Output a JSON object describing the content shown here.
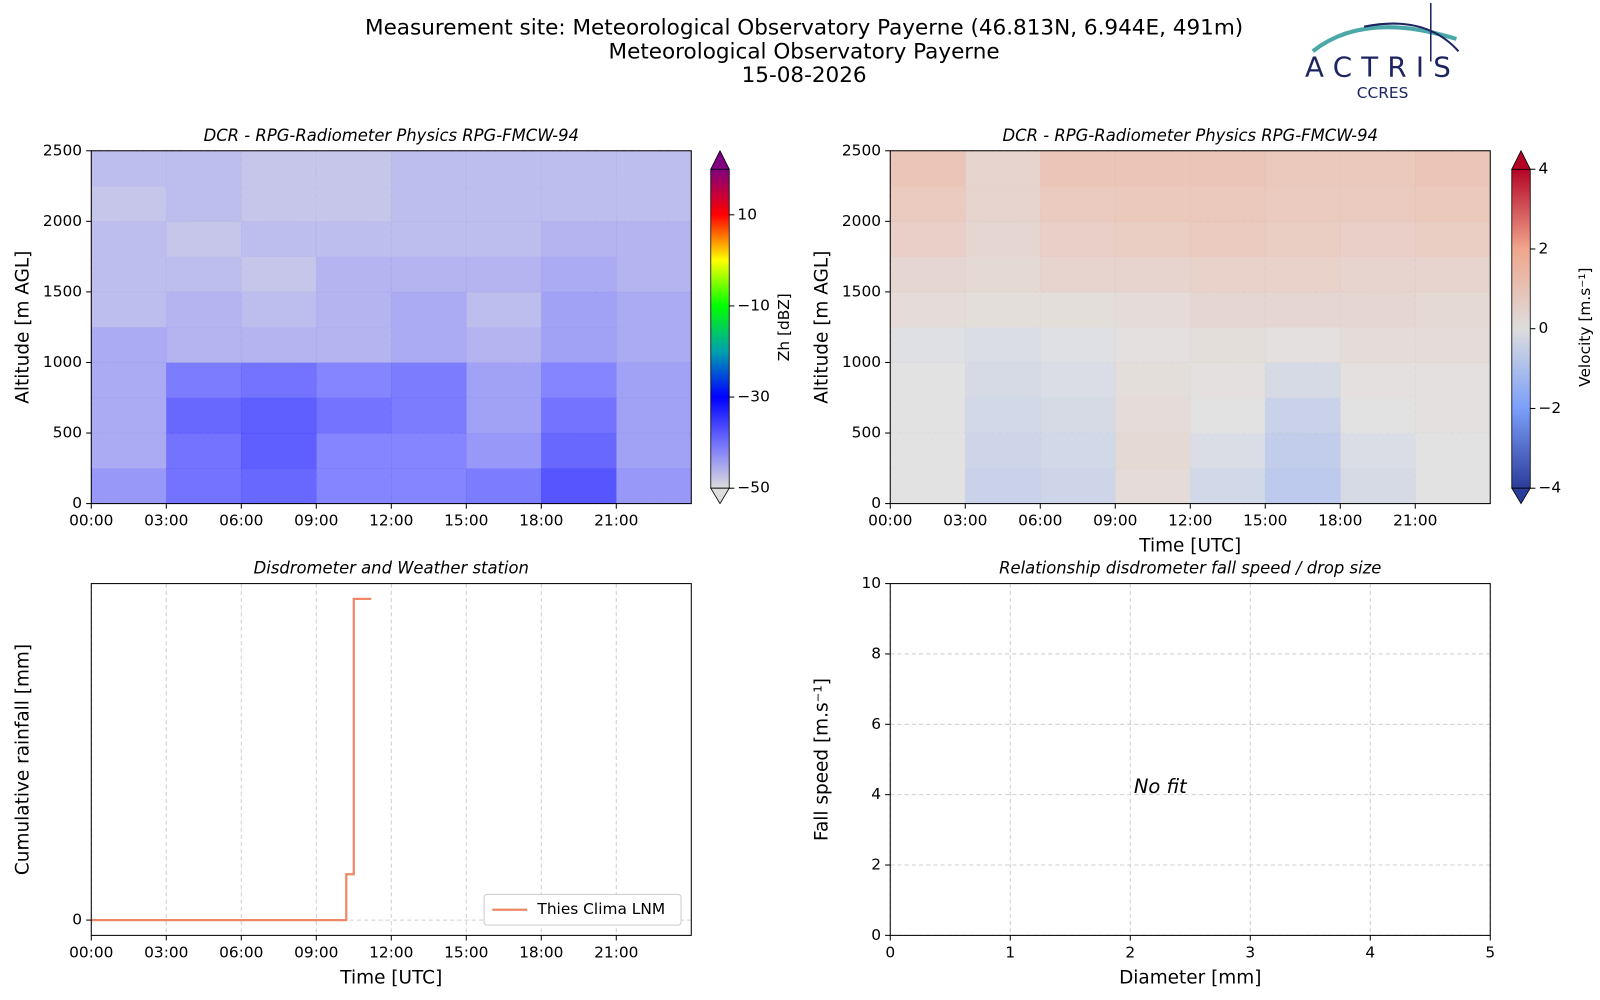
{
  "header": {
    "title": "Measurement site: Meteorological Observatory Payerne (46.813N, 6.944E, 491m)",
    "site": "Meteorological Observatory Payerne",
    "date": "15-08-2026"
  },
  "logo": {
    "name": "ACTRIS",
    "subtitle": "CCRES"
  },
  "chart_data": [
    {
      "type": "heatmap",
      "title": "DCR - RPG-Radiometer Physics RPG-FMCW-94",
      "ylabel": "Altitude [m AGL]",
      "colorbar_label": "Zh [dBZ]",
      "xlim": [
        0,
        24
      ],
      "xticks": [
        {
          "value": 0,
          "label": "00:00"
        },
        {
          "value": 3,
          "label": "03:00"
        },
        {
          "value": 6,
          "label": "06:00"
        },
        {
          "value": 9,
          "label": "09:00"
        },
        {
          "value": 12,
          "label": "12:00"
        },
        {
          "value": 15,
          "label": "15:00"
        },
        {
          "value": 18,
          "label": "18:00"
        },
        {
          "value": 21,
          "label": "21:00"
        }
      ],
      "ylim": [
        0,
        2500
      ],
      "yticks": [
        0,
        500,
        1000,
        1500,
        2000,
        2500
      ],
      "grid": true,
      "xbins": [
        0,
        3,
        6,
        9,
        12,
        15,
        18,
        21,
        24
      ],
      "ybins": [
        0,
        250,
        500,
        750,
        1000,
        1250,
        1500,
        1750,
        2000,
        2250,
        2500
      ],
      "values": [
        [
          -42,
          -38,
          -37,
          -40,
          -40,
          -39,
          -35,
          -42
        ],
        [
          -44,
          -38,
          -36,
          -40,
          -40,
          -42,
          -37,
          -43
        ],
        [
          -44,
          -37,
          -36,
          -38,
          -39,
          -43,
          -38,
          -43
        ],
        [
          -44,
          -39,
          -38,
          -40,
          -39,
          -43,
          -40,
          -43
        ],
        [
          -44,
          -45,
          -45,
          -45,
          -44,
          -45,
          -43,
          -44
        ],
        [
          -46,
          -45,
          -46,
          -45,
          -44,
          -46,
          -43,
          -44
        ],
        [
          -46,
          -46,
          -47,
          -45,
          -45,
          -45,
          -44,
          -45
        ],
        [
          -46,
          -47,
          -46,
          -46,
          -46,
          -46,
          -45,
          -45
        ],
        [
          -47,
          -46,
          -47,
          -47,
          -46,
          -46,
          -46,
          -46
        ],
        [
          -46,
          -46,
          -47,
          -47,
          -46,
          -46,
          -46,
          -46
        ]
      ],
      "clim": [
        -50,
        20
      ],
      "cticks": [
        {
          "value": -50,
          "label": "−50"
        },
        {
          "value": -30,
          "label": "−30"
        },
        {
          "value": -10,
          "label": "−10"
        },
        10
      ],
      "colormap": [
        "#dddddd",
        "#7070ff",
        "#0000ff",
        "#00a0b0",
        "#00ff00",
        "#ffff00",
        "#ff0000",
        "#800080"
      ]
    },
    {
      "type": "heatmap",
      "title": "DCR - RPG-Radiometer Physics RPG-FMCW-94",
      "xlabel": "Time [UTC]",
      "ylabel": "Altitude [m AGL]",
      "colorbar_label": "Velocity [m.s⁻¹]",
      "xlim": [
        0,
        24
      ],
      "xticks": [
        {
          "value": 0,
          "label": "00:00"
        },
        {
          "value": 3,
          "label": "03:00"
        },
        {
          "value": 6,
          "label": "06:00"
        },
        {
          "value": 9,
          "label": "09:00"
        },
        {
          "value": 12,
          "label": "12:00"
        },
        {
          "value": 15,
          "label": "15:00"
        },
        {
          "value": 18,
          "label": "18:00"
        },
        {
          "value": 21,
          "label": "21:00"
        }
      ],
      "ylim": [
        0,
        2500
      ],
      "yticks": [
        0,
        500,
        1000,
        1500,
        2000,
        2500
      ],
      "grid": true,
      "xbins": [
        0,
        3,
        6,
        9,
        12,
        15,
        18,
        21,
        24
      ],
      "ybins": [
        0,
        250,
        500,
        750,
        1000,
        1250,
        1500,
        1750,
        2000,
        2250,
        2500
      ],
      "values": [
        [
          0,
          -0.6,
          -0.5,
          0.3,
          -0.4,
          -0.9,
          -0.3,
          0
        ],
        [
          0,
          -0.5,
          -0.4,
          0.4,
          -0.2,
          -0.8,
          -0.2,
          0
        ],
        [
          0,
          -0.4,
          -0.3,
          0.3,
          0,
          -0.6,
          0,
          0.1
        ],
        [
          0,
          -0.3,
          -0.2,
          0.2,
          0.1,
          -0.3,
          0.1,
          0.1
        ],
        [
          -0.1,
          -0.2,
          -0.1,
          0.1,
          0.2,
          0.1,
          0.3,
          0.3
        ],
        [
          0.3,
          0.2,
          0.2,
          0.3,
          0.5,
          0.5,
          0.5,
          0.4
        ],
        [
          0.5,
          0.4,
          0.6,
          0.6,
          0.7,
          0.7,
          0.6,
          0.6
        ],
        [
          0.8,
          0.5,
          0.8,
          0.9,
          1,
          0.9,
          0.8,
          0.9
        ],
        [
          1,
          0.6,
          1,
          1.1,
          1.1,
          1,
          1,
          1.1
        ],
        [
          1.2,
          0.6,
          1.2,
          1.2,
          1.2,
          1.1,
          1.1,
          1.2
        ]
      ],
      "clim": [
        -4,
        4
      ],
      "cticks": [
        {
          "value": -4,
          "label": "−4"
        },
        {
          "value": -2,
          "label": "−2"
        },
        0,
        2,
        4
      ],
      "colormap": [
        "#2b3d9a",
        "#7b9ff9",
        "#dddddd",
        "#f0a68c",
        "#b40426"
      ]
    },
    {
      "type": "line",
      "title": "Disdrometer and Weather station",
      "xlabel": "Time [UTC]",
      "ylabel": "Cumulative rainfall [mm]",
      "xlim": [
        0,
        24
      ],
      "xticks": [
        {
          "value": 0,
          "label": "00:00"
        },
        {
          "value": 3,
          "label": "03:00"
        },
        {
          "value": 6,
          "label": "06:00"
        },
        {
          "value": 9,
          "label": "09:00"
        },
        {
          "value": 12,
          "label": "12:00"
        },
        {
          "value": 15,
          "label": "15:00"
        },
        {
          "value": 18,
          "label": "18:00"
        },
        {
          "value": 21,
          "label": "21:00"
        }
      ],
      "ylim": [
        -0.05,
        1.1
      ],
      "yticks": [
        0
      ],
      "grid": true,
      "step": "post",
      "legend": "lower right",
      "x": [
        0,
        10.2,
        10.5,
        11.2
      ],
      "series": [
        {
          "name": "Thies Clima LNM",
          "color": "#ee8866",
          "values": [
            0,
            0.15,
            1.05,
            1.05
          ]
        }
      ]
    },
    {
      "type": "scatter",
      "title": "Relationship disdrometer fall speed / drop size",
      "xlabel": "Diameter [mm]",
      "ylabel": "Fall speed [m.s⁻¹]",
      "xlim": [
        0,
        5
      ],
      "xticks": [
        0,
        1,
        2,
        3,
        4,
        5
      ],
      "ylim": [
        0,
        10
      ],
      "yticks": [
        0,
        2,
        4,
        6,
        8,
        10
      ],
      "grid": true,
      "annotation": "No fit"
    }
  ]
}
